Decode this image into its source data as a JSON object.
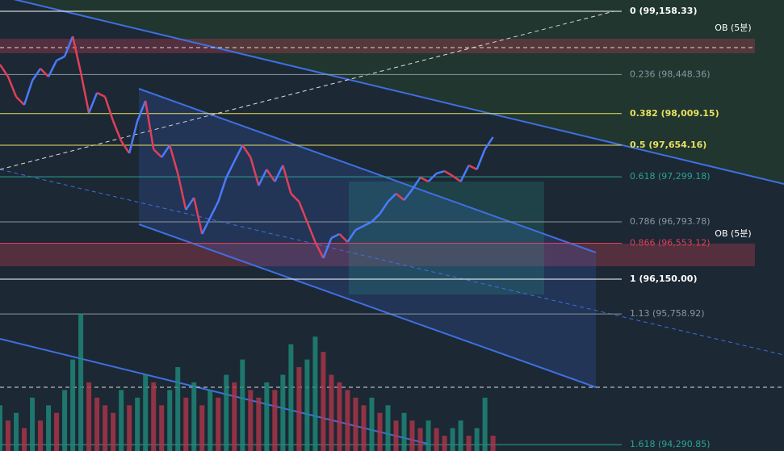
{
  "chart_data": {
    "type": "line",
    "x": [
      0,
      1,
      2,
      3,
      4,
      5,
      6,
      7,
      8,
      9,
      10,
      11,
      12,
      13,
      14,
      15,
      16,
      17,
      18,
      19,
      20,
      21,
      22,
      23,
      24,
      25,
      26,
      27,
      28,
      29,
      30,
      31,
      32,
      33,
      34,
      35,
      36,
      37,
      38,
      39,
      40,
      41,
      42,
      43,
      44,
      45,
      46,
      47,
      48,
      49,
      50,
      51,
      52,
      53,
      54,
      55,
      56,
      57,
      58,
      59,
      60,
      61
    ],
    "xlim": [
      0,
      97
    ],
    "ylim": [
      94220,
      99285
    ],
    "series": [
      {
        "values": [
          98560,
          98424,
          98198,
          98107,
          98379,
          98515,
          98424,
          98606,
          98651,
          98877,
          98470,
          98017,
          98243,
          98198,
          97926,
          97700,
          97564,
          97926,
          98153,
          97609,
          97519,
          97654,
          97337,
          96929,
          97065,
          96657,
          96839,
          97020,
          97292,
          97473,
          97654,
          97519,
          97201,
          97382,
          97246,
          97428,
          97111,
          97020,
          96794,
          96567,
          96386,
          96612,
          96657,
          96567,
          96703,
          96748,
          96794,
          96884,
          97020,
          97111,
          97038,
          97156,
          97292,
          97246,
          97337,
          97364,
          97310,
          97246,
          97428,
          97382,
          97609,
          97745
        ],
        "up_color": "#4a7bff",
        "down_color": "#e0405a"
      },
      {
        "values": [
          30,
          20,
          25,
          15,
          35,
          20,
          30,
          25,
          40,
          60,
          90,
          45,
          35,
          30,
          25,
          40,
          30,
          35,
          50,
          45,
          30,
          40,
          55,
          35,
          45,
          30,
          40,
          35,
          50,
          45,
          60,
          40,
          35,
          45,
          40,
          50,
          70,
          55,
          60,
          75,
          65,
          50,
          45,
          40,
          35,
          30,
          35,
          25,
          30,
          20,
          25,
          20,
          15,
          20,
          15,
          10,
          15,
          20,
          10,
          15,
          35,
          10
        ],
        "axis": "y2",
        "up_color": "#1f8a7a",
        "down_color": "#b0364a"
      }
    ],
    "y2lim": [
      0,
      100
    ],
    "fib_levels": [
      {
        "value": 99158.33,
        "label": "0 (99,158.33)",
        "color": "#ffffff"
      },
      {
        "value": 98448.36,
        "label": "0.236 (98,448.36)",
        "color": "#8a96a3"
      },
      {
        "value": 98009.15,
        "label": "0.382 (98,009.15)",
        "color": "#e8e060"
      },
      {
        "value": 97654.16,
        "label": "0.5 (97,654.16)",
        "color": "#e8e060"
      },
      {
        "value": 97299.18,
        "label": "0.618 (97,299.18)",
        "color": "#2aa592"
      },
      {
        "value": 96793.78,
        "label": "0.786 (96,793.78)",
        "color": "#8a96a3"
      },
      {
        "value": 96553.12,
        "label": "0.866 (96,553.12)",
        "color": "#e0405a"
      },
      {
        "value": 96150.0,
        "label": "1 (96,150.00)",
        "color": "#ffffff"
      },
      {
        "value": 95758.92,
        "label": "1.13 (95,758.92)",
        "color": "#8a96a3"
      },
      {
        "value": 94290.85,
        "label": "1.618 (94,290.85)",
        "color": "#2aa592"
      }
    ],
    "annotations": [
      "OB (5분)",
      "OB (5분)"
    ]
  }
}
